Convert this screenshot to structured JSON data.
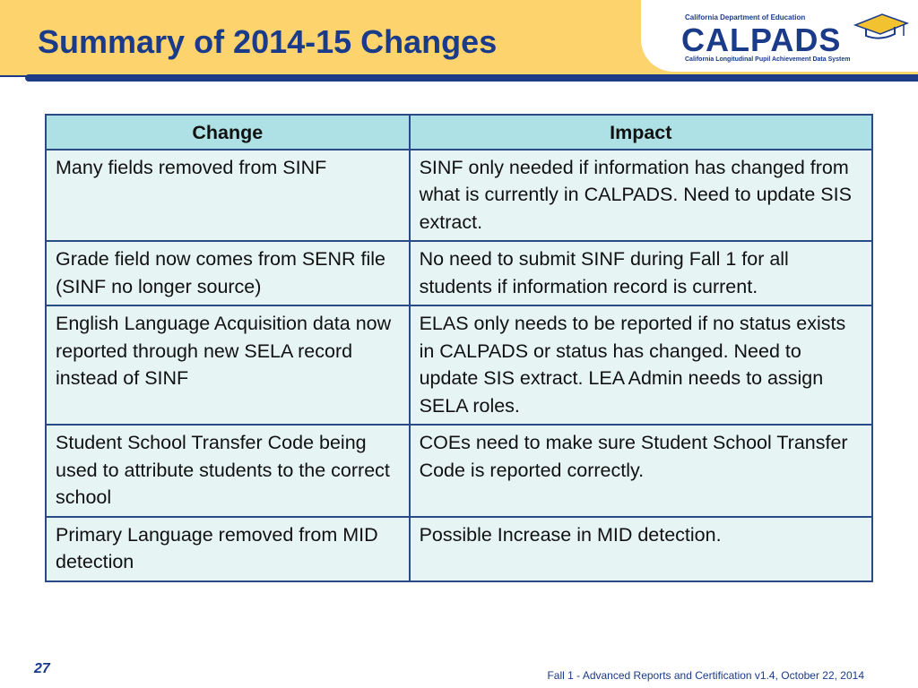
{
  "header": {
    "title": "Summary of 2014-15 Changes",
    "logo": {
      "top_text": "California Department of Education",
      "wordmark": "CALPADS",
      "bottom_text": "California Longitudinal Pupil Achievement Data System"
    }
  },
  "table": {
    "headers": [
      "Change",
      "Impact"
    ],
    "rows": [
      {
        "change": "Many fields removed from SINF",
        "impact": "SINF only needed if information has changed from what is currently in CALPADS. Need to update SIS extract."
      },
      {
        "change": "Grade field now comes from SENR file (SINF no longer source)",
        "impact": "No need to submit SINF during Fall 1 for all students if information record is current."
      },
      {
        "change": "English Language Acquisition data now reported through new SELA record instead of SINF",
        "impact": "ELAS only needs to be reported if no status exists in CALPADS or status has changed. Need to update SIS extract. LEA Admin needs to assign SELA roles."
      },
      {
        "change": "Student School Transfer Code being used to attribute students to the correct school",
        "impact": "COEs need to make sure Student School Transfer Code is reported correctly."
      },
      {
        "change": "Primary Language removed from MID detection",
        "impact": "Possible Increase in MID detection."
      }
    ]
  },
  "footer": {
    "page_number": "27",
    "text": "Fall 1 - Advanced Reports and Certification v1.4, October 22, 2014"
  },
  "colors": {
    "header_band": "#fdd36e",
    "title": "#1a3a8a",
    "rule": "#1b3b86",
    "table_header_bg": "#aee1e5",
    "table_cell_bg": "#e7f4f4",
    "table_border": "#2a4a86"
  }
}
